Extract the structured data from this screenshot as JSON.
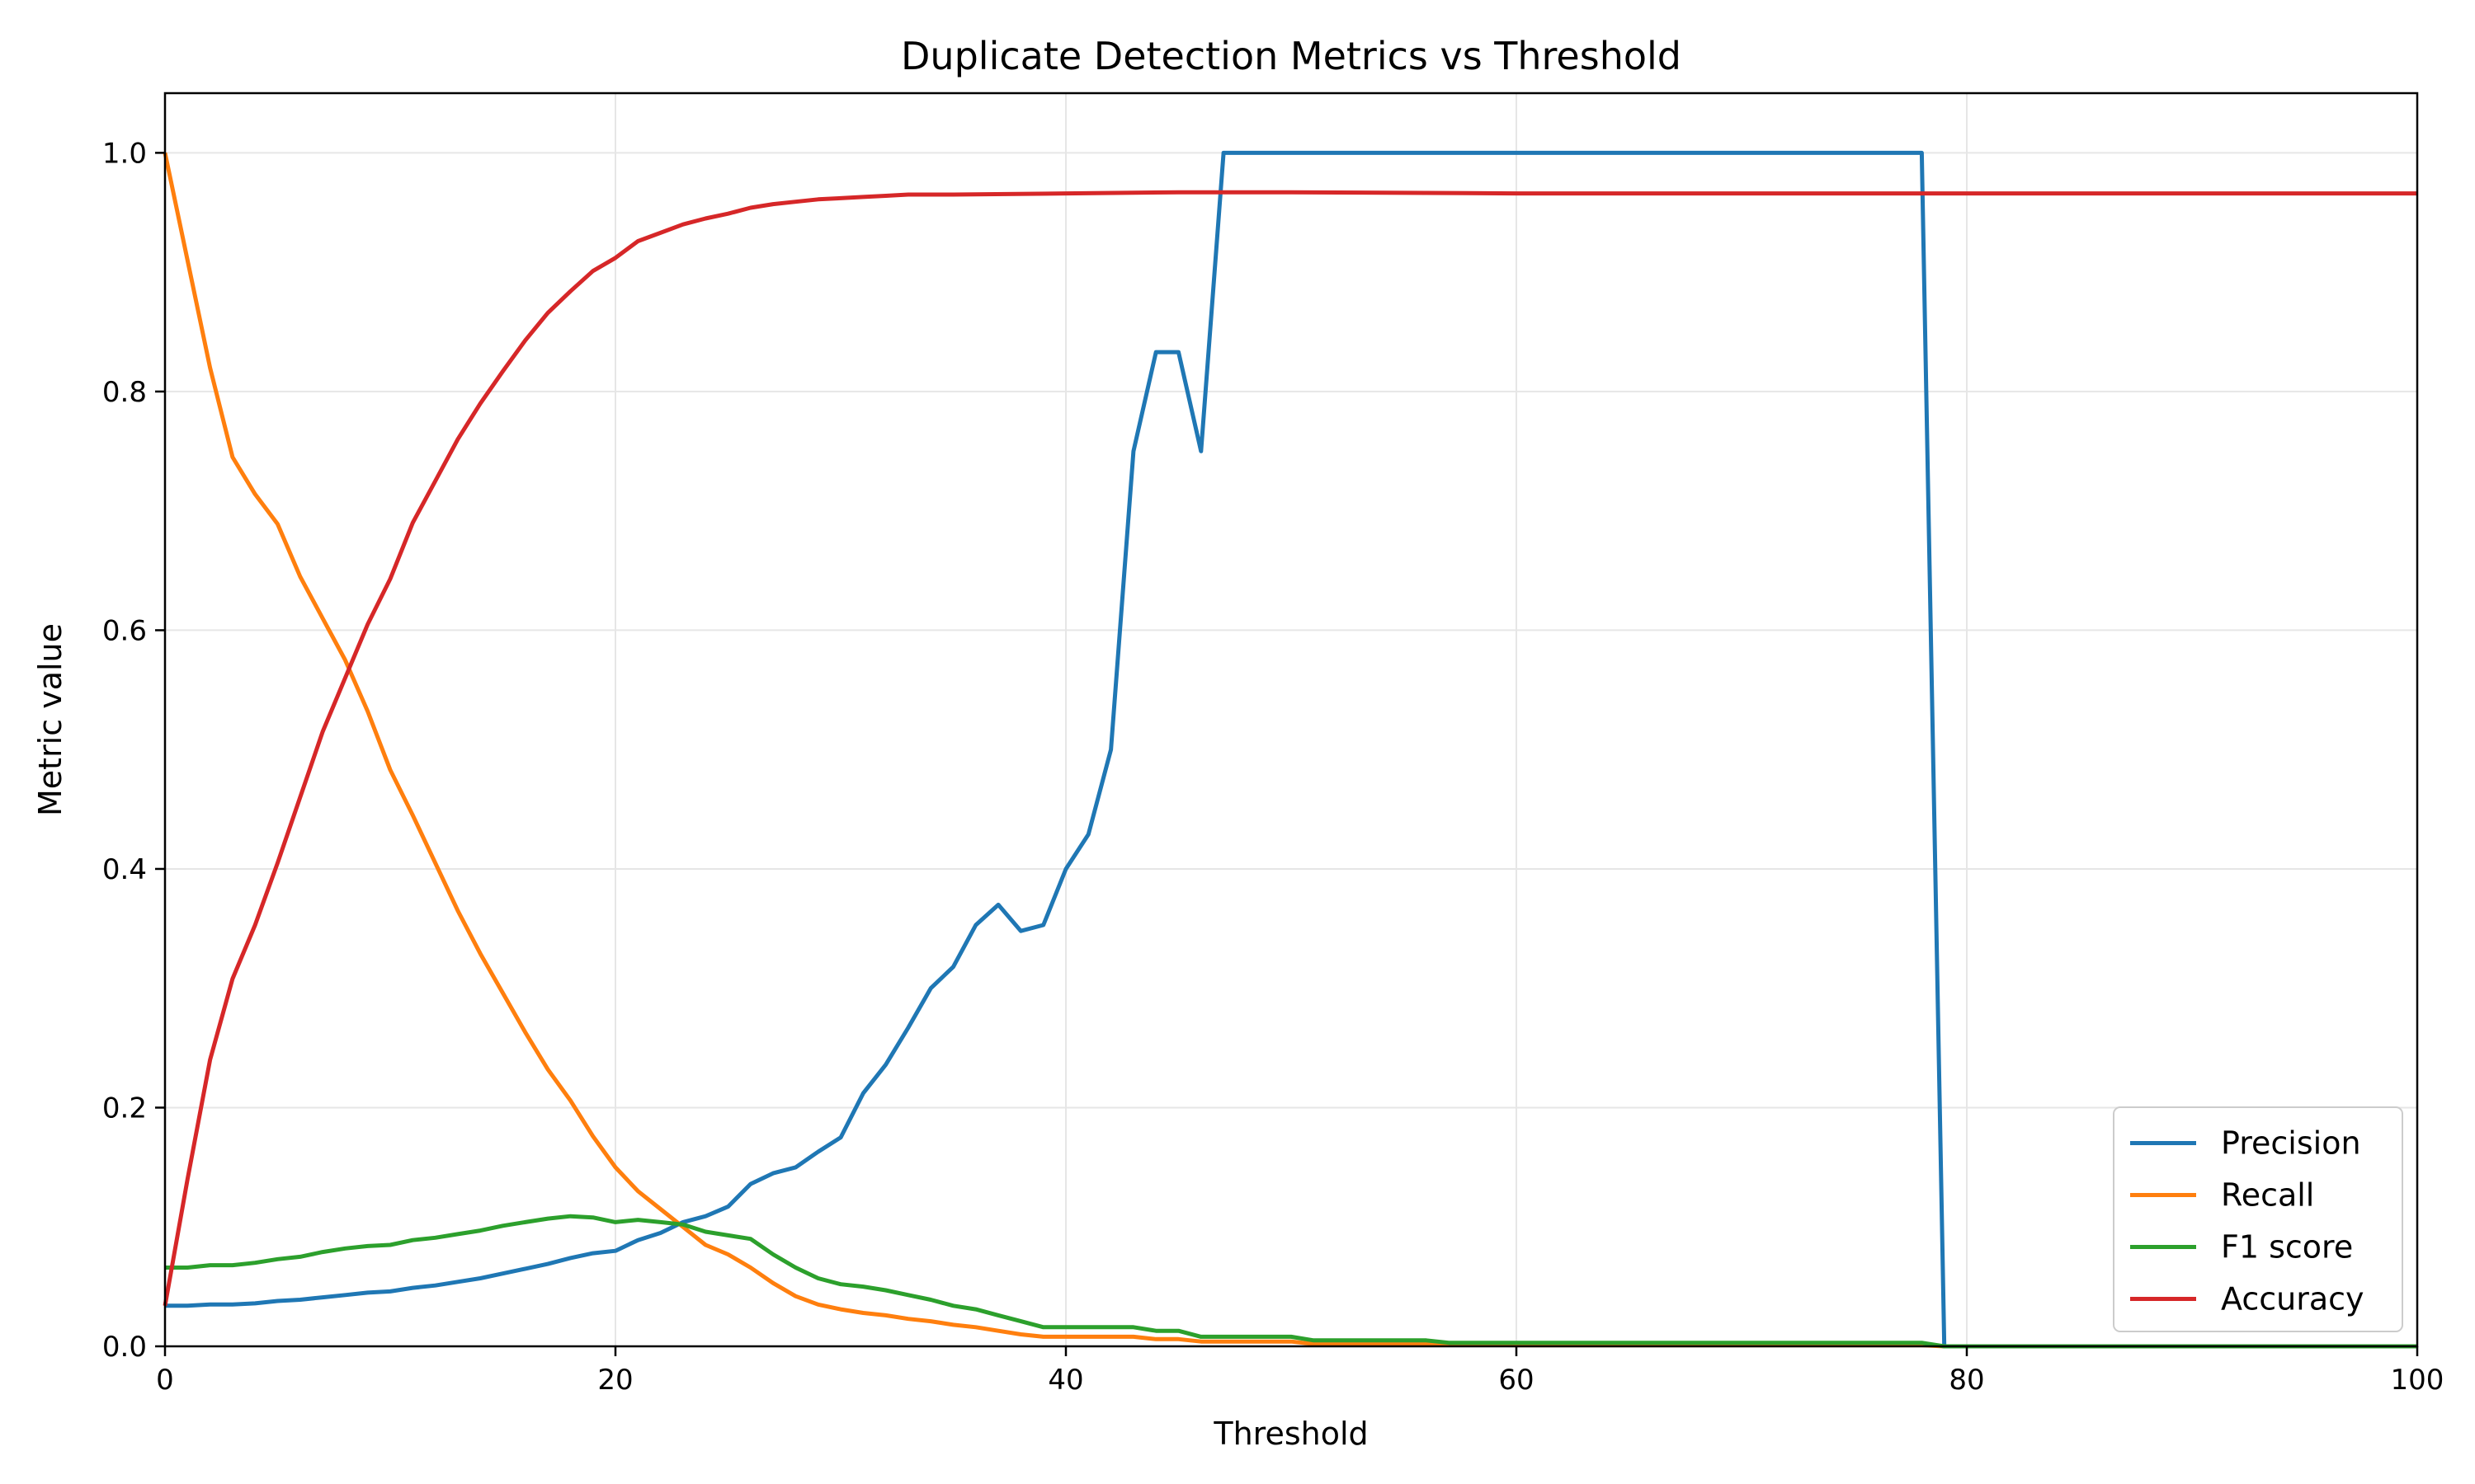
{
  "chart_data": {
    "type": "line",
    "title": "Duplicate Detection Metrics vs Threshold",
    "xlabel": "Threshold",
    "ylabel": "Metric value",
    "xlim": [
      0,
      100
    ],
    "ylim": [
      0,
      1.05
    ],
    "xticks": [
      0,
      20,
      40,
      60,
      80,
      100
    ],
    "xtick_labels": [
      "0",
      "20",
      "40",
      "60",
      "80",
      "100"
    ],
    "yticks": [
      0,
      0.2,
      0.4,
      0.6,
      0.8,
      1.0
    ],
    "ytick_labels": [
      "0.0",
      "0.2",
      "0.4",
      "0.6",
      "0.8",
      "1.0"
    ],
    "grid": true,
    "legend_position": "lower-right",
    "series": [
      {
        "name": "Precision",
        "color": "#1f77b4",
        "points": [
          [
            0,
            0.034
          ],
          [
            1,
            0.034
          ],
          [
            2,
            0.035
          ],
          [
            3,
            0.035
          ],
          [
            4,
            0.036
          ],
          [
            5,
            0.038
          ],
          [
            6,
            0.039
          ],
          [
            7,
            0.041
          ],
          [
            8,
            0.043
          ],
          [
            9,
            0.045
          ],
          [
            10,
            0.046
          ],
          [
            11,
            0.049
          ],
          [
            12,
            0.051
          ],
          [
            13,
            0.054
          ],
          [
            14,
            0.057
          ],
          [
            15,
            0.061
          ],
          [
            16,
            0.065
          ],
          [
            17,
            0.069
          ],
          [
            18,
            0.074
          ],
          [
            19,
            0.078
          ],
          [
            20,
            0.08
          ],
          [
            21,
            0.089
          ],
          [
            22,
            0.095
          ],
          [
            23,
            0.104
          ],
          [
            24,
            0.109
          ],
          [
            25,
            0.117
          ],
          [
            26,
            0.136
          ],
          [
            27,
            0.145
          ],
          [
            28,
            0.15
          ],
          [
            29,
            0.163
          ],
          [
            30,
            0.175
          ],
          [
            31,
            0.212
          ],
          [
            32,
            0.236
          ],
          [
            33,
            0.267
          ],
          [
            34,
            0.3
          ],
          [
            35,
            0.318
          ],
          [
            36,
            0.353
          ],
          [
            37,
            0.37
          ],
          [
            38,
            0.348
          ],
          [
            39,
            0.353
          ],
          [
            40,
            0.4
          ],
          [
            41,
            0.429
          ],
          [
            42,
            0.5
          ],
          [
            43,
            0.75
          ],
          [
            44,
            0.833
          ],
          [
            45,
            0.833
          ],
          [
            46,
            0.75
          ],
          [
            47,
            1.0
          ],
          [
            48,
            1.0
          ],
          [
            50,
            1.0
          ],
          [
            55,
            1.0
          ],
          [
            60,
            1.0
          ],
          [
            65,
            1.0
          ],
          [
            70,
            1.0
          ],
          [
            75,
            1.0
          ],
          [
            78,
            1.0
          ],
          [
            79,
            0.0
          ],
          [
            80,
            0.0
          ],
          [
            85,
            0.0
          ],
          [
            90,
            0.0
          ],
          [
            95,
            0.0
          ],
          [
            100,
            0.0
          ]
        ]
      },
      {
        "name": "Recall",
        "color": "#ff7f0e",
        "points": [
          [
            0,
            1.0
          ],
          [
            1,
            0.91
          ],
          [
            2,
            0.82
          ],
          [
            3,
            0.745
          ],
          [
            4,
            0.714
          ],
          [
            5,
            0.689
          ],
          [
            6,
            0.645
          ],
          [
            7,
            0.61
          ],
          [
            8,
            0.575
          ],
          [
            9,
            0.532
          ],
          [
            10,
            0.483
          ],
          [
            11,
            0.445
          ],
          [
            12,
            0.405
          ],
          [
            13,
            0.365
          ],
          [
            14,
            0.329
          ],
          [
            15,
            0.296
          ],
          [
            16,
            0.263
          ],
          [
            17,
            0.232
          ],
          [
            18,
            0.206
          ],
          [
            19,
            0.176
          ],
          [
            20,
            0.15
          ],
          [
            21,
            0.13
          ],
          [
            22,
            0.115
          ],
          [
            23,
            0.1
          ],
          [
            24,
            0.085
          ],
          [
            25,
            0.077
          ],
          [
            26,
            0.066
          ],
          [
            27,
            0.053
          ],
          [
            28,
            0.042
          ],
          [
            29,
            0.035
          ],
          [
            30,
            0.031
          ],
          [
            31,
            0.028
          ],
          [
            32,
            0.026
          ],
          [
            33,
            0.023
          ],
          [
            34,
            0.021
          ],
          [
            35,
            0.018
          ],
          [
            36,
            0.016
          ],
          [
            37,
            0.013
          ],
          [
            38,
            0.01
          ],
          [
            39,
            0.008
          ],
          [
            40,
            0.008
          ],
          [
            41,
            0.008
          ],
          [
            42,
            0.008
          ],
          [
            43,
            0.008
          ],
          [
            44,
            0.006
          ],
          [
            45,
            0.006
          ],
          [
            46,
            0.004
          ],
          [
            47,
            0.004
          ],
          [
            48,
            0.004
          ],
          [
            50,
            0.004
          ],
          [
            51,
            0.002
          ],
          [
            55,
            0.002
          ],
          [
            60,
            0.001
          ],
          [
            65,
            0.001
          ],
          [
            70,
            0.001
          ],
          [
            75,
            0.001
          ],
          [
            78,
            0.001
          ],
          [
            79,
            0.0
          ],
          [
            80,
            0.0
          ],
          [
            85,
            0.0
          ],
          [
            90,
            0.0
          ],
          [
            95,
            0.0
          ],
          [
            100,
            0.0
          ]
        ]
      },
      {
        "name": "F1 score",
        "color": "#2ca02c",
        "points": [
          [
            0,
            0.066
          ],
          [
            1,
            0.066
          ],
          [
            2,
            0.068
          ],
          [
            3,
            0.068
          ],
          [
            4,
            0.07
          ],
          [
            5,
            0.073
          ],
          [
            6,
            0.075
          ],
          [
            7,
            0.079
          ],
          [
            8,
            0.082
          ],
          [
            9,
            0.084
          ],
          [
            10,
            0.085
          ],
          [
            11,
            0.089
          ],
          [
            12,
            0.091
          ],
          [
            13,
            0.094
          ],
          [
            14,
            0.097
          ],
          [
            15,
            0.101
          ],
          [
            16,
            0.104
          ],
          [
            17,
            0.107
          ],
          [
            18,
            0.109
          ],
          [
            19,
            0.108
          ],
          [
            20,
            0.104
          ],
          [
            21,
            0.106
          ],
          [
            22,
            0.104
          ],
          [
            23,
            0.102
          ],
          [
            24,
            0.096
          ],
          [
            25,
            0.093
          ],
          [
            26,
            0.09
          ],
          [
            27,
            0.077
          ],
          [
            28,
            0.066
          ],
          [
            29,
            0.057
          ],
          [
            30,
            0.052
          ],
          [
            31,
            0.05
          ],
          [
            32,
            0.047
          ],
          [
            33,
            0.043
          ],
          [
            34,
            0.039
          ],
          [
            35,
            0.034
          ],
          [
            36,
            0.031
          ],
          [
            37,
            0.026
          ],
          [
            38,
            0.021
          ],
          [
            39,
            0.016
          ],
          [
            40,
            0.016
          ],
          [
            41,
            0.016
          ],
          [
            42,
            0.016
          ],
          [
            43,
            0.016
          ],
          [
            44,
            0.013
          ],
          [
            45,
            0.013
          ],
          [
            46,
            0.008
          ],
          [
            47,
            0.008
          ],
          [
            48,
            0.008
          ],
          [
            50,
            0.008
          ],
          [
            51,
            0.005
          ],
          [
            56,
            0.005
          ],
          [
            57,
            0.003
          ],
          [
            60,
            0.003
          ],
          [
            65,
            0.003
          ],
          [
            70,
            0.003
          ],
          [
            75,
            0.003
          ],
          [
            78,
            0.003
          ],
          [
            79,
            0.0
          ],
          [
            80,
            0.0
          ],
          [
            85,
            0.0
          ],
          [
            90,
            0.0
          ],
          [
            95,
            0.0
          ],
          [
            100,
            0.0
          ]
        ]
      },
      {
        "name": "Accuracy",
        "color": "#d62728",
        "points": [
          [
            0,
            0.034
          ],
          [
            1,
            0.14
          ],
          [
            2,
            0.24
          ],
          [
            3,
            0.308
          ],
          [
            4,
            0.353
          ],
          [
            5,
            0.405
          ],
          [
            6,
            0.46
          ],
          [
            7,
            0.515
          ],
          [
            8,
            0.56
          ],
          [
            9,
            0.605
          ],
          [
            10,
            0.643
          ],
          [
            11,
            0.69
          ],
          [
            12,
            0.725
          ],
          [
            13,
            0.76
          ],
          [
            14,
            0.79
          ],
          [
            15,
            0.817
          ],
          [
            16,
            0.843
          ],
          [
            17,
            0.866
          ],
          [
            18,
            0.884
          ],
          [
            19,
            0.901
          ],
          [
            20,
            0.912
          ],
          [
            21,
            0.926
          ],
          [
            22,
            0.933
          ],
          [
            23,
            0.94
          ],
          [
            24,
            0.945
          ],
          [
            25,
            0.949
          ],
          [
            26,
            0.954
          ],
          [
            27,
            0.957
          ],
          [
            28,
            0.959
          ],
          [
            29,
            0.961
          ],
          [
            30,
            0.962
          ],
          [
            31,
            0.963
          ],
          [
            32,
            0.964
          ],
          [
            33,
            0.965
          ],
          [
            35,
            0.965
          ],
          [
            40,
            0.966
          ],
          [
            45,
            0.967
          ],
          [
            50,
            0.967
          ],
          [
            60,
            0.966
          ],
          [
            70,
            0.966
          ],
          [
            80,
            0.966
          ],
          [
            90,
            0.966
          ],
          [
            100,
            0.966
          ]
        ]
      }
    ]
  }
}
